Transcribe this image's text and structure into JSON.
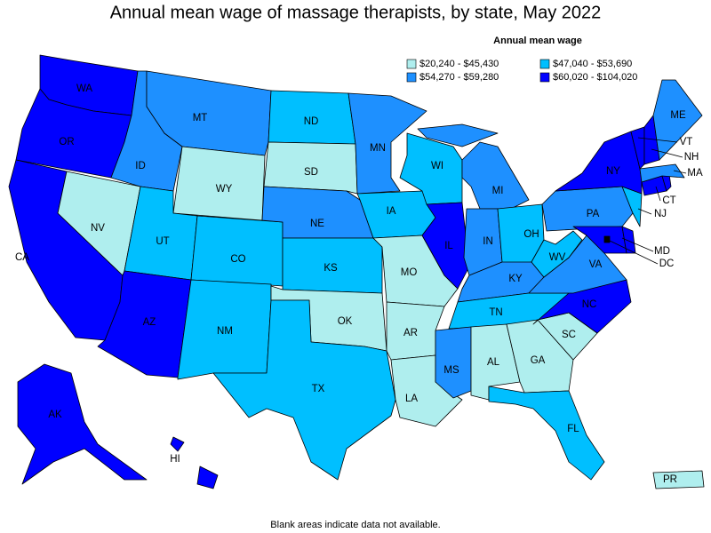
{
  "title": "Annual mean wage of massage therapists, by state, May 2022",
  "legend": {
    "title": "Annual mean wage",
    "bins": [
      {
        "label": "$20,240 - $45,430",
        "color": "#afeeee"
      },
      {
        "label": "$47,040 - $53,690",
        "color": "#00bfff"
      },
      {
        "label": "$54,270 - $59,280",
        "color": "#1e90ff"
      },
      {
        "label": "$60,020 - $104,020",
        "color": "#0000ff"
      }
    ]
  },
  "states": [
    {
      "abbr": "WA",
      "bin": 3
    },
    {
      "abbr": "OR",
      "bin": 3
    },
    {
      "abbr": "CA",
      "bin": 3
    },
    {
      "abbr": "NV",
      "bin": 0
    },
    {
      "abbr": "ID",
      "bin": 2
    },
    {
      "abbr": "MT",
      "bin": 2
    },
    {
      "abbr": "WY",
      "bin": 0
    },
    {
      "abbr": "UT",
      "bin": 1
    },
    {
      "abbr": "CO",
      "bin": 1
    },
    {
      "abbr": "AZ",
      "bin": 3
    },
    {
      "abbr": "NM",
      "bin": 1
    },
    {
      "abbr": "ND",
      "bin": 1
    },
    {
      "abbr": "SD",
      "bin": 0
    },
    {
      "abbr": "NE",
      "bin": 2
    },
    {
      "abbr": "KS",
      "bin": 1
    },
    {
      "abbr": "OK",
      "bin": 0
    },
    {
      "abbr": "TX",
      "bin": 1
    },
    {
      "abbr": "MN",
      "bin": 2
    },
    {
      "abbr": "IA",
      "bin": 1
    },
    {
      "abbr": "MO",
      "bin": 0
    },
    {
      "abbr": "AR",
      "bin": 0
    },
    {
      "abbr": "LA",
      "bin": 0
    },
    {
      "abbr": "WI",
      "bin": 1
    },
    {
      "abbr": "IL",
      "bin": 3
    },
    {
      "abbr": "MI",
      "bin": 2
    },
    {
      "abbr": "IN",
      "bin": 2
    },
    {
      "abbr": "OH",
      "bin": 1
    },
    {
      "abbr": "KY",
      "bin": 2
    },
    {
      "abbr": "TN",
      "bin": 1
    },
    {
      "abbr": "MS",
      "bin": 2
    },
    {
      "abbr": "AL",
      "bin": 0
    },
    {
      "abbr": "GA",
      "bin": 0
    },
    {
      "abbr": "FL",
      "bin": 1
    },
    {
      "abbr": "SC",
      "bin": 0
    },
    {
      "abbr": "NC",
      "bin": 3
    },
    {
      "abbr": "VA",
      "bin": 2
    },
    {
      "abbr": "WV",
      "bin": 1
    },
    {
      "abbr": "PA",
      "bin": 2
    },
    {
      "abbr": "MD",
      "bin": 3
    },
    {
      "abbr": "DE",
      "bin": 3
    },
    {
      "abbr": "NJ",
      "bin": 1
    },
    {
      "abbr": "NY",
      "bin": 3
    },
    {
      "abbr": "CT",
      "bin": 3
    },
    {
      "abbr": "RI",
      "bin": 3
    },
    {
      "abbr": "MA",
      "bin": 2
    },
    {
      "abbr": "VT",
      "bin": 3
    },
    {
      "abbr": "NH",
      "bin": 3
    },
    {
      "abbr": "ME",
      "bin": 2
    },
    {
      "abbr": "AK",
      "bin": 3
    },
    {
      "abbr": "HI",
      "bin": 3
    },
    {
      "abbr": "PR",
      "bin": 0
    },
    {
      "abbr": "DC",
      "bin": 3
    }
  ],
  "note": "Blank areas indicate data not available."
}
